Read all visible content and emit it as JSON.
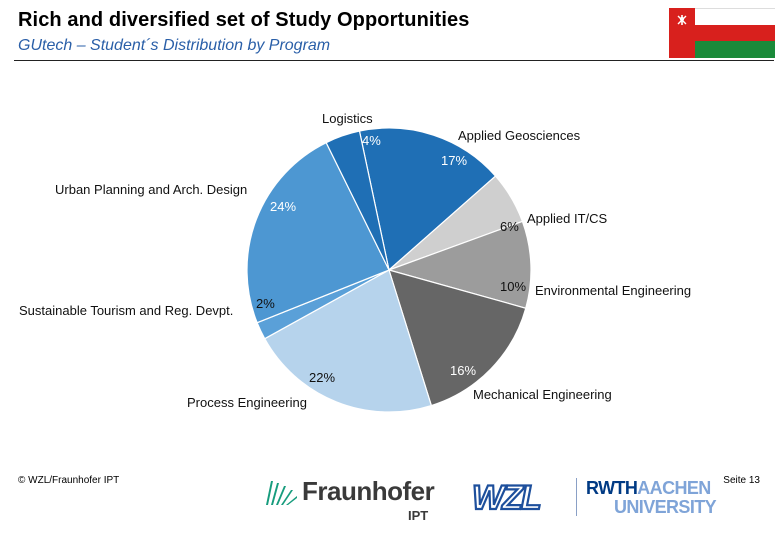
{
  "header": {
    "title": "Rich and diversified set of Study Opportunities",
    "subtitle": "GUtech – Student´s Distribution by Program"
  },
  "colors": {
    "applied_geosciences": "#1f6fb5",
    "applied_it_cs": "#cfcfcf",
    "environmental_engineering": "#9c9c9c",
    "mechanical_engineering": "#666666",
    "process_engineering": "#b6d3ec",
    "sustainable_tourism": "#5aa0d8",
    "urban_planning": "#4d97d2",
    "logistics": "#1f6fb5",
    "title_blue": "#2a5fa8"
  },
  "chart_data": {
    "type": "pie",
    "unit": "%",
    "slices": [
      {
        "label": "Applied Geosciences",
        "value": 17,
        "value_label": "17%"
      },
      {
        "label": "Applied IT/CS",
        "value": 6,
        "value_label": "6%"
      },
      {
        "label": "Environmental Engineering",
        "value": 10,
        "value_label": "10%"
      },
      {
        "label": "Mechanical Engineering",
        "value": 16,
        "value_label": "16%"
      },
      {
        "label": "Process Engineering",
        "value": 22,
        "value_label": "22%"
      },
      {
        "label": "Sustainable Tourism and Reg. Devpt.",
        "value": 2,
        "value_label": "2%"
      },
      {
        "label": "Urban Planning and Arch. Design",
        "value": 24,
        "value_label": "24%"
      },
      {
        "label": "Logistics",
        "value": 4,
        "value_label": "4%"
      }
    ]
  },
  "footer": {
    "copyright": "© WZL/Fraunhofer IPT",
    "page": "Seite 13",
    "logos": {
      "fraunhofer_name": "Fraunhofer",
      "fraunhofer_unit": "IPT",
      "wzl": "WZL",
      "rwth_line1_bold": "RWTH",
      "rwth_line1_light": "AACHEN",
      "rwth_line2": "UNIVERSITY"
    }
  }
}
